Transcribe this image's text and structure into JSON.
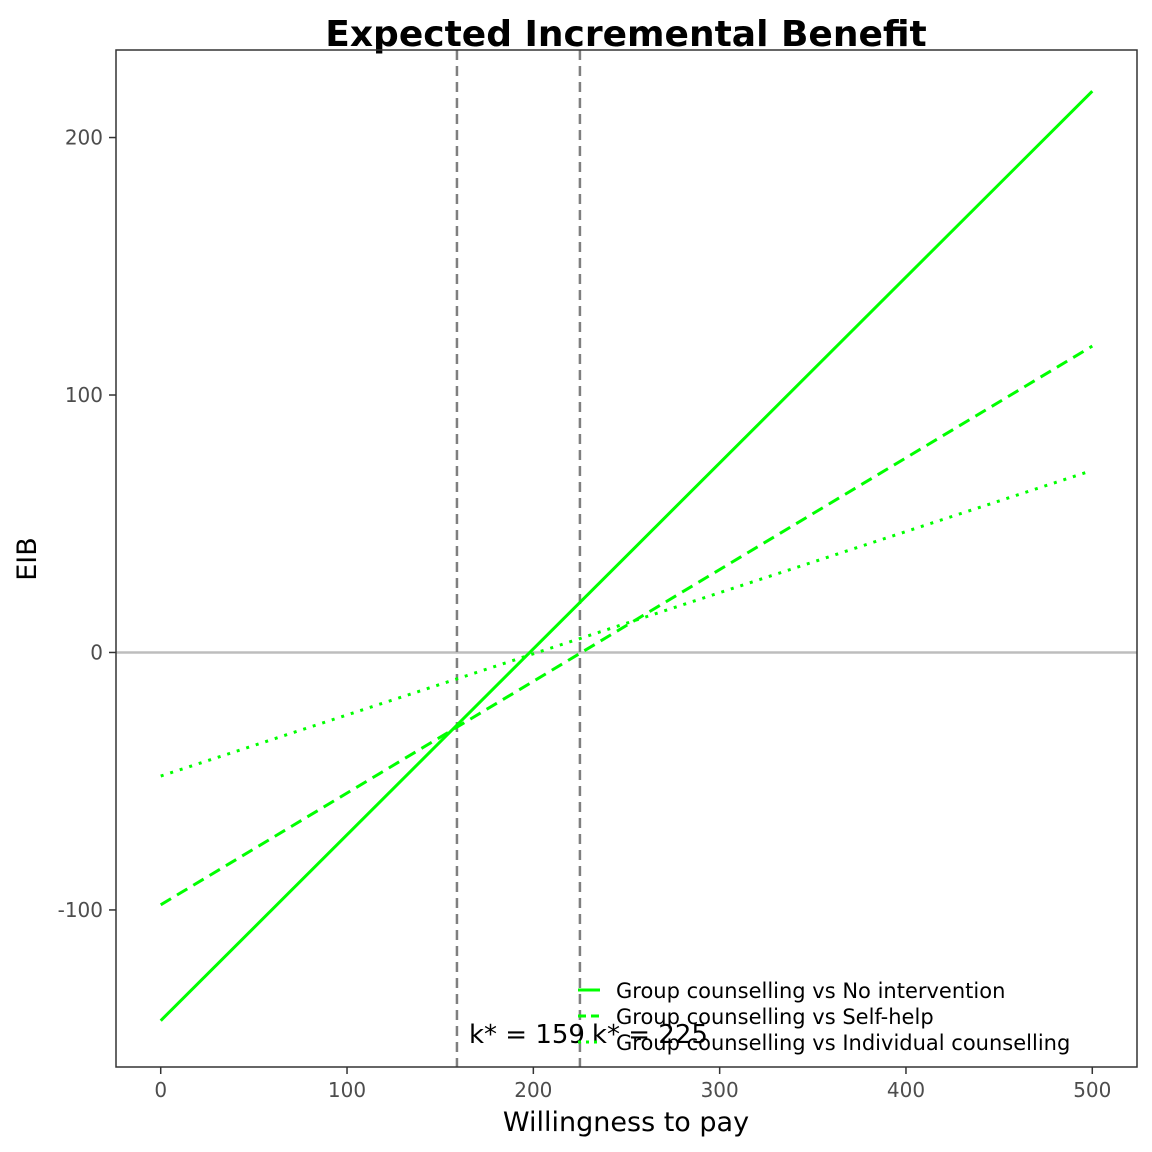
{
  "chart_data": {
    "type": "line",
    "title": "Expected Incremental Benefit",
    "xlabel": "Willingness to pay",
    "ylabel": "EIB",
    "xlim": [
      -24,
      524
    ],
    "ylim": [
      -161,
      234
    ],
    "x_ticks": [
      0,
      100,
      200,
      300,
      400,
      500
    ],
    "y_ticks": [
      -100,
      0,
      100,
      200
    ],
    "x_tick_labels": [
      "0",
      "100",
      "200",
      "300",
      "400",
      "500"
    ],
    "y_tick_labels": [
      "-100",
      "0",
      "100",
      "200"
    ],
    "grid": false,
    "legend_position": "bottom-right inside",
    "reference_line_y": 0,
    "series": [
      {
        "name": "Group counselling vs No intervention",
        "style": "solid",
        "color": "#00ff00",
        "x": [
          0,
          500
        ],
        "y": [
          -143,
          218
        ]
      },
      {
        "name": "Group counselling vs Self-help",
        "style": "dashed",
        "color": "#00ff00",
        "x": [
          0,
          500
        ],
        "y": [
          -98,
          119
        ]
      },
      {
        "name": "Group counselling vs Individual counselling",
        "style": "dotted",
        "color": "#00ff00",
        "x": [
          0,
          497
        ],
        "y": [
          -48,
          70
        ]
      }
    ],
    "vertical_lines": [
      {
        "x": 159,
        "label": "k* = 159"
      },
      {
        "x": 225,
        "label": "k* = 225"
      }
    ]
  }
}
